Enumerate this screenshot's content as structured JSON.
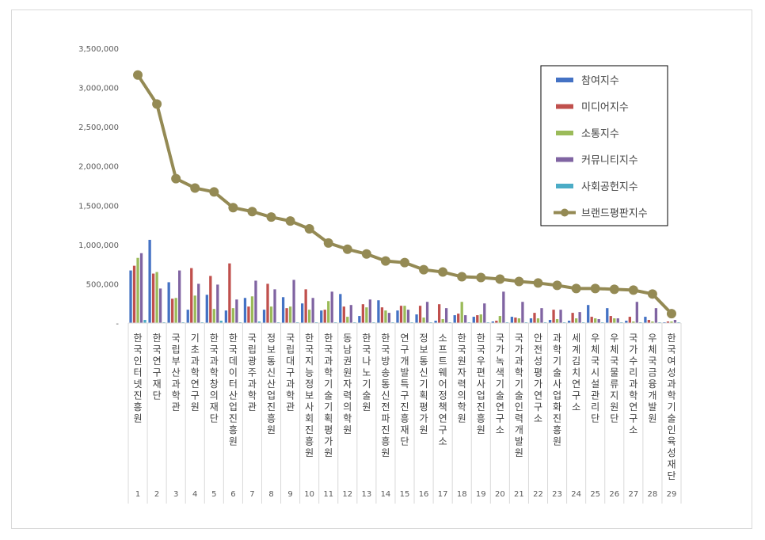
{
  "chart_data": {
    "type": "bar",
    "title": "",
    "xlabel": "",
    "ylabel": "",
    "ylim": [
      0,
      3500000
    ],
    "y_ticks": [
      "-",
      "500,000",
      "1,000,000",
      "1,500,000",
      "2,000,000",
      "2,500,000",
      "3,000,000",
      "3,500,000"
    ],
    "grid": false,
    "legend_position": "top-right",
    "categories": [
      "1",
      "2",
      "3",
      "4",
      "5",
      "6",
      "7",
      "8",
      "9",
      "10",
      "11",
      "12",
      "13",
      "14",
      "15",
      "16",
      "17",
      "18",
      "19",
      "20",
      "21",
      "22",
      "23",
      "24",
      "25",
      "26",
      "27",
      "28",
      "29"
    ],
    "category_names": [
      "한국인터넷진흥원",
      "한국연구재단",
      "국립부산과학관",
      "기초과학연구원",
      "한국과학창의재단",
      "한국데이터산업진흥원",
      "국립광주과학관",
      "정보통신산업진흥원",
      "국립대구과학관",
      "한국지능정보사회진흥원",
      "한국과학기술기획평가원",
      "동남권원자력의학원",
      "한국나노기술원",
      "한국방송통신전파진흥원",
      "연구개발특구진흥재단",
      "정보통신기획평가원",
      "소프트웨어정책연구소",
      "한국원자력의학원",
      "한국우편사업진흥원",
      "국가녹색기술연구소",
      "국가과학기술인력개발원",
      "안전성평가연구소",
      "과학기술사업화진흥원",
      "세계김치연구소",
      "우체국시설관리단",
      "우체국물류지원단",
      "국가수리과학연구소",
      "우체국금융개발원",
      "한국여성과학기술인육성재단"
    ],
    "series": [
      {
        "name": "참여지수",
        "color": "#4472C4",
        "values": [
          670000,
          1060000,
          520000,
          170000,
          360000,
          160000,
          320000,
          170000,
          330000,
          250000,
          160000,
          370000,
          90000,
          290000,
          160000,
          110000,
          30000,
          100000,
          80000,
          20000,
          80000,
          60000,
          40000,
          30000,
          230000,
          190000,
          30000,
          80000,
          10000
        ]
      },
      {
        "name": "미디어지수",
        "color": "#C0504D",
        "values": [
          730000,
          630000,
          310000,
          700000,
          600000,
          760000,
          210000,
          500000,
          190000,
          430000,
          170000,
          210000,
          240000,
          200000,
          220000,
          220000,
          240000,
          120000,
          100000,
          30000,
          70000,
          130000,
          170000,
          130000,
          80000,
          90000,
          80000,
          40000,
          20000
        ]
      },
      {
        "name": "소통지수",
        "color": "#9BBB59",
        "values": [
          830000,
          650000,
          320000,
          350000,
          180000,
          190000,
          340000,
          210000,
          210000,
          170000,
          280000,
          80000,
          200000,
          160000,
          220000,
          70000,
          50000,
          270000,
          110000,
          90000,
          60000,
          60000,
          50000,
          60000,
          60000,
          60000,
          20000,
          20000,
          20000
        ]
      },
      {
        "name": "커뮤니티지수",
        "color": "#8064A2",
        "values": [
          890000,
          440000,
          670000,
          500000,
          490000,
          300000,
          540000,
          430000,
          550000,
          320000,
          400000,
          230000,
          300000,
          130000,
          170000,
          270000,
          190000,
          100000,
          250000,
          400000,
          270000,
          190000,
          170000,
          140000,
          50000,
          60000,
          270000,
          190000,
          40000
        ]
      },
      {
        "name": "사회공헌지수",
        "color": "#4BACC6",
        "values": [
          40000,
          10000,
          10000,
          10000,
          30000,
          10000,
          20000,
          10000,
          10000,
          10000,
          10000,
          10000,
          10000,
          10000,
          10000,
          10000,
          10000,
          10000,
          10000,
          10000,
          10000,
          10000,
          10000,
          10000,
          10000,
          10000,
          10000,
          10000,
          10000
        ]
      }
    ],
    "line_series": {
      "name": "브랜드평판지수",
      "color": "#948A54",
      "values": [
        3160000,
        2790000,
        1840000,
        1720000,
        1670000,
        1470000,
        1420000,
        1350000,
        1300000,
        1200000,
        1020000,
        940000,
        880000,
        790000,
        770000,
        680000,
        650000,
        590000,
        580000,
        560000,
        530000,
        510000,
        480000,
        440000,
        440000,
        430000,
        420000,
        370000,
        120000
      ]
    }
  }
}
